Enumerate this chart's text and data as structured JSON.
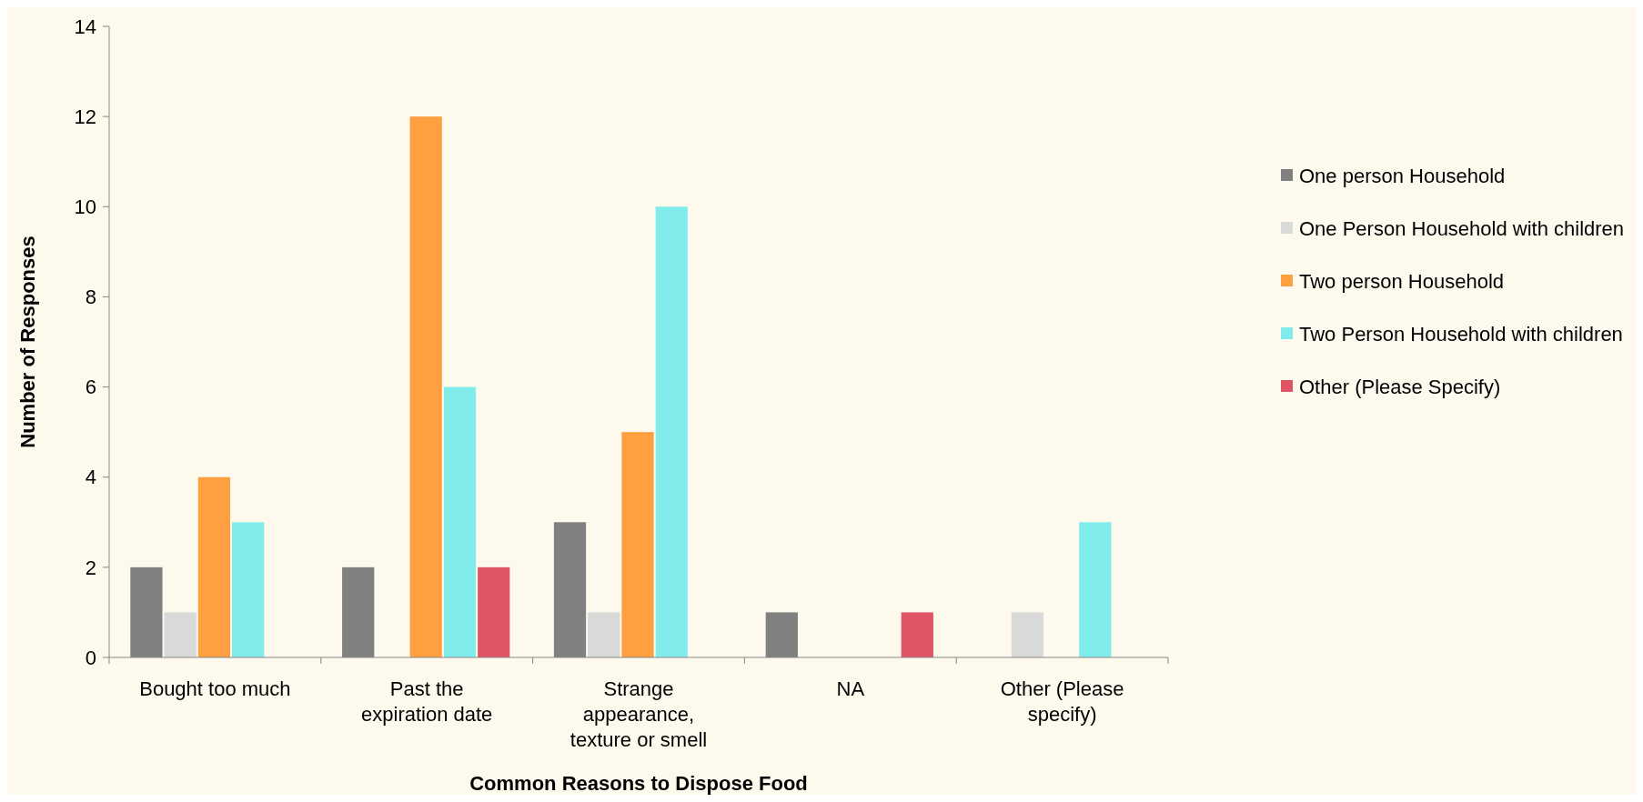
{
  "chart_data": {
    "type": "bar",
    "xlabel": "Common Reasons to Dispose Food",
    "ylabel": "Number of Responses",
    "categories": [
      "Bought too much",
      "Past the expiration date",
      "Strange appearance, texture or smell",
      "NA",
      "Other (Please specify)"
    ],
    "series": [
      {
        "name": "One person Household",
        "color": "#808080",
        "values": [
          2,
          2,
          3,
          1,
          0
        ]
      },
      {
        "name": "One Person Household with children",
        "color": "#d9d9d9",
        "values": [
          1,
          0,
          1,
          0,
          1
        ]
      },
      {
        "name": "Two person Household",
        "color": "#ffa040",
        "values": [
          4,
          12,
          5,
          0,
          0
        ]
      },
      {
        "name": "Two Person Household with children",
        "color": "#80ecec",
        "values": [
          3,
          6,
          10,
          0,
          3
        ]
      },
      {
        "name": "Other (Please Specify)",
        "color": "#e05565",
        "values": [
          0,
          2,
          0,
          1,
          0
        ]
      }
    ],
    "ylim": [
      0,
      14
    ],
    "yticks": [
      0,
      2,
      4,
      6,
      8,
      10,
      12,
      14
    ],
    "grid": false,
    "legend": "right"
  }
}
